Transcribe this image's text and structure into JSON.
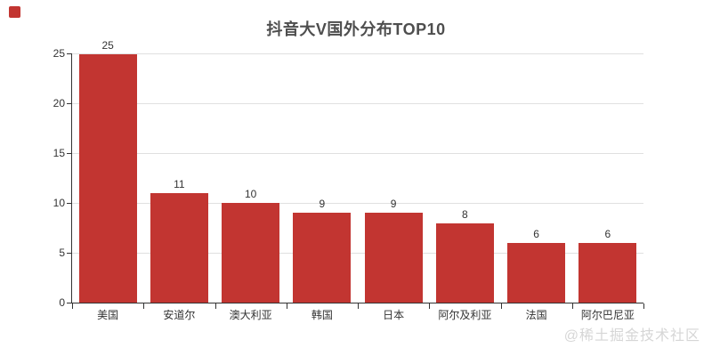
{
  "chart_data": {
    "type": "bar",
    "title": "抖音大V国外分布TOP10",
    "categories": [
      "美国",
      "安道尔",
      "澳大利亚",
      "韩国",
      "日本",
      "阿尔及利亚",
      "法国",
      "阿尔巴尼亚"
    ],
    "values": [
      25,
      11,
      10,
      9,
      9,
      8,
      6,
      6
    ],
    "xlabel": "",
    "ylabel": "",
    "ylim": [
      0,
      25
    ],
    "yticks": [
      0,
      5,
      10,
      15,
      20,
      25
    ],
    "grid": true,
    "legend_position": "none",
    "bar_color": "#c23531",
    "value_labels_shown": true
  },
  "decoration": {
    "corner_square_color": "#c23531"
  },
  "watermark": {
    "text": "@稀土掘金技术社区",
    "color": "#d6d6d6"
  },
  "colors": {
    "background": "#ffffff",
    "bar": "#c23531",
    "title": "#4e4e4e",
    "axis_line": "#333333",
    "axis_label": "#333333",
    "gridline": "#e0e0e0",
    "watermark": "#d6d6d6"
  }
}
